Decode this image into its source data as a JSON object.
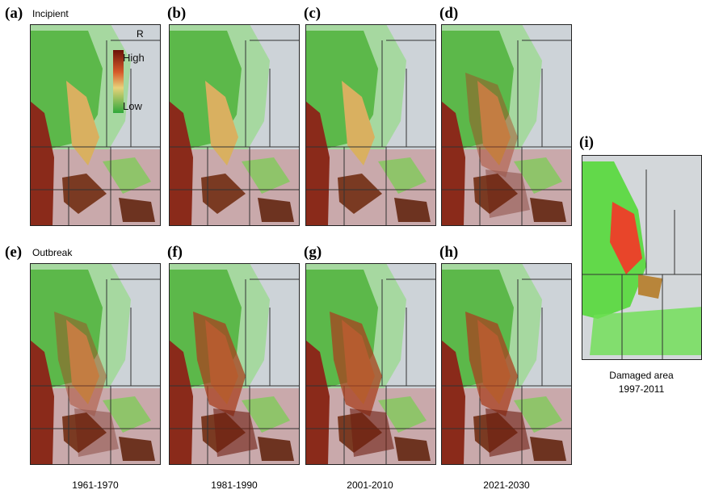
{
  "panels": [
    {
      "label": "(a)",
      "title": "Incipient"
    },
    {
      "label": "(b)"
    },
    {
      "label": "(c)"
    },
    {
      "label": "(d)"
    },
    {
      "label": "(e)",
      "title": "Outbreak"
    },
    {
      "label": "(f)"
    },
    {
      "label": "(g)"
    },
    {
      "label": "(h)"
    }
  ],
  "legend": {
    "high": "High",
    "low": "Low",
    "mark": "R"
  },
  "periods": [
    "1961-1970",
    "1981-1990",
    "2001-2010",
    "2021-2030"
  ],
  "damaged": {
    "label": "(i)",
    "caption": [
      "Damaged area",
      "1997-2011"
    ]
  }
}
